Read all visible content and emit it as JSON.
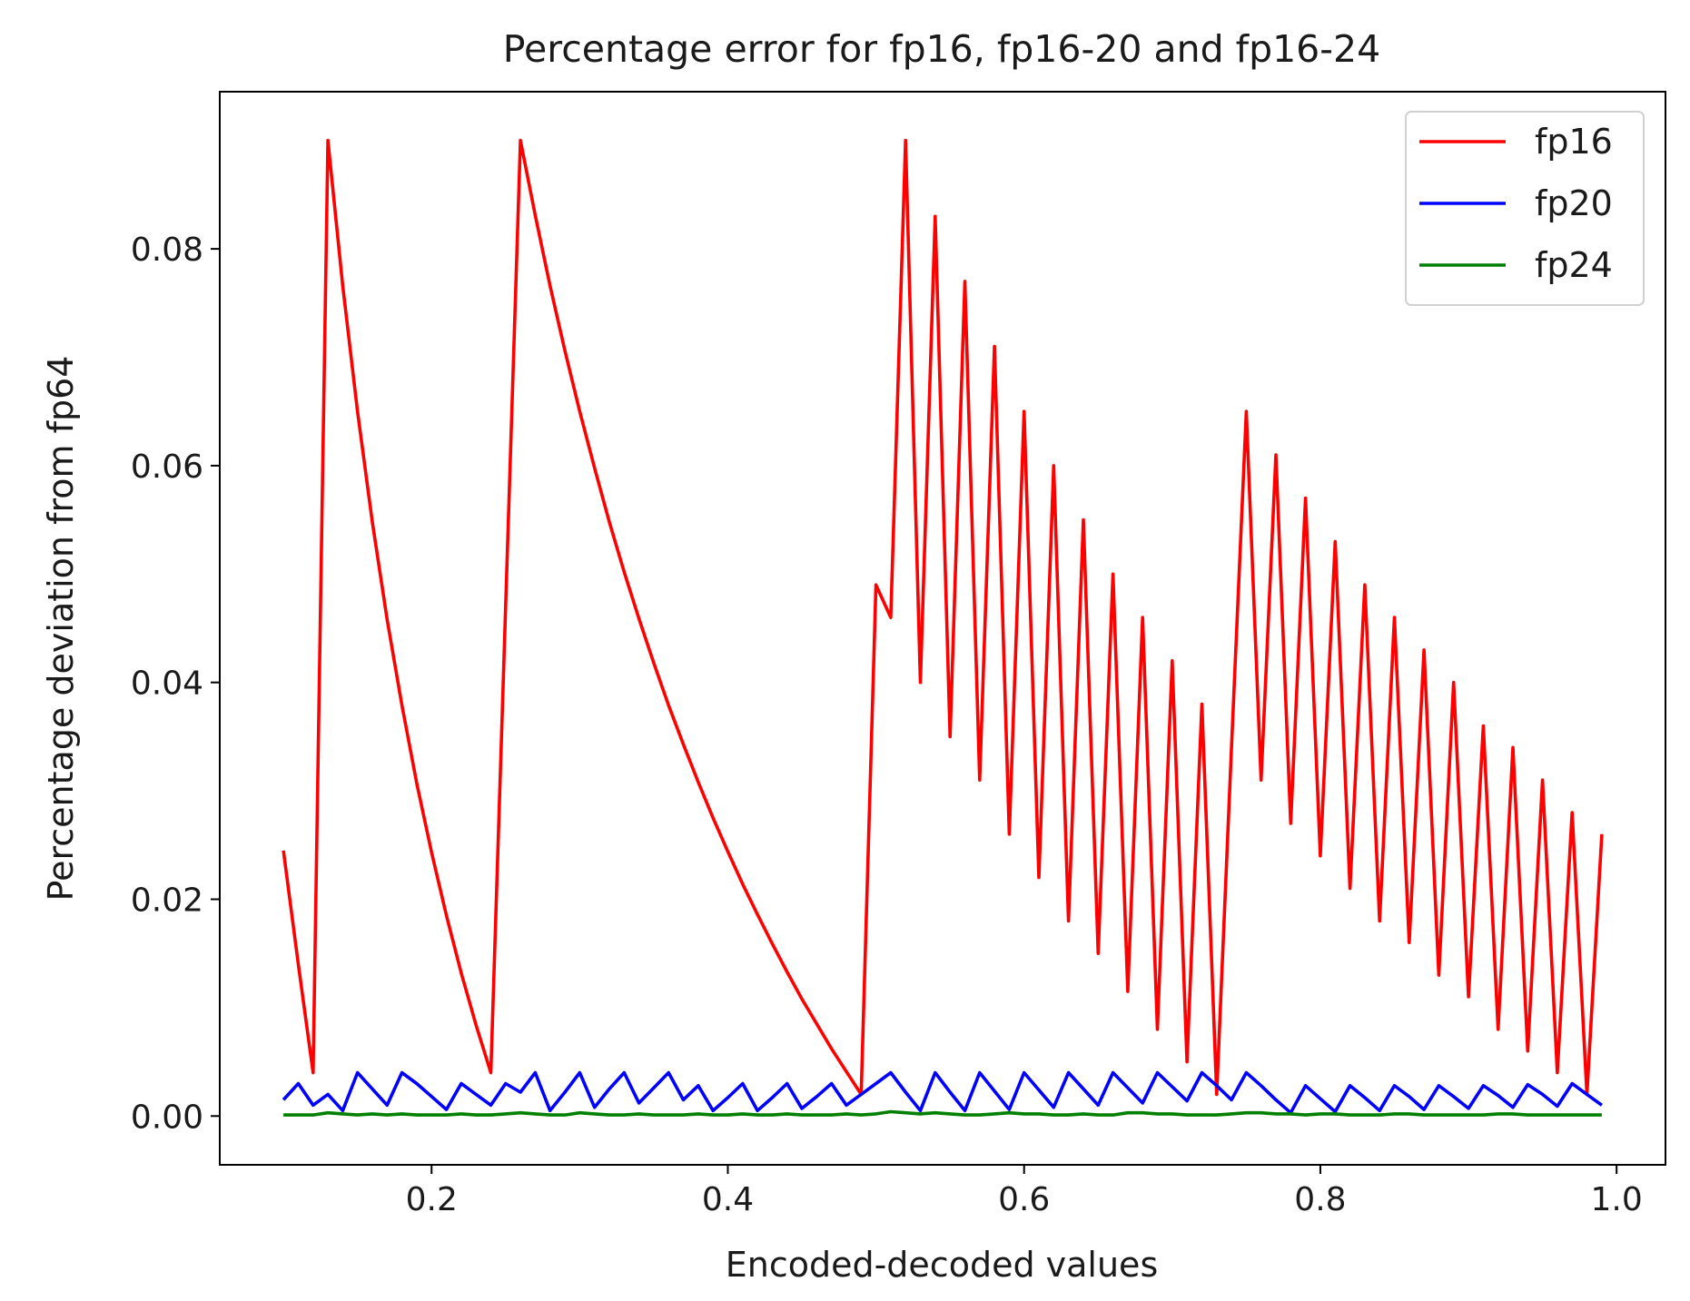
{
  "chart_data": {
    "type": "line",
    "title": "Percentage error for fp16, fp16-20 and fp16-24",
    "xlabel": "Encoded-decoded values",
    "ylabel": "Percentage deviation from fp64",
    "xlim": [
      0.057,
      1.033
    ],
    "ylim": [
      -0.0045,
      0.0945
    ],
    "xticks": [
      0.2,
      0.4,
      0.6,
      0.8,
      1.0
    ],
    "xtick_labels": [
      "0.2",
      "0.4",
      "0.6",
      "0.8",
      "1.0"
    ],
    "yticks": [
      0.0,
      0.02,
      0.04,
      0.06,
      0.08
    ],
    "ytick_labels": [
      "0.00",
      "0.02",
      "0.04",
      "0.06",
      "0.08"
    ],
    "grid": false,
    "legend_position": "top-right",
    "x_start": 0.1,
    "x_step": 0.01,
    "series": [
      {
        "name": "fp16",
        "color": "#ff0000",
        "values": [
          0.0245,
          0.014,
          0.004,
          0.09,
          0.0766,
          0.065,
          0.0548,
          0.0458,
          0.0379,
          0.0307,
          0.0243,
          0.0185,
          0.0132,
          0.0084,
          0.004,
          0.047,
          0.09,
          0.0831,
          0.0766,
          0.0706,
          0.065,
          0.0598,
          0.0548,
          0.0502,
          0.0459,
          0.0418,
          0.0379,
          0.0343,
          0.0308,
          0.0275,
          0.0244,
          0.0214,
          0.0186,
          0.0159,
          0.0133,
          0.0108,
          0.0085,
          0.0062,
          0.0041,
          0.002,
          0.049,
          0.046,
          0.09,
          0.04,
          0.083,
          0.035,
          0.077,
          0.031,
          0.071,
          0.026,
          0.065,
          0.022,
          0.06,
          0.018,
          0.055,
          0.015,
          0.05,
          0.0115,
          0.046,
          0.008,
          0.042,
          0.005,
          0.038,
          0.002,
          0.034,
          0.065,
          0.031,
          0.061,
          0.027,
          0.057,
          0.024,
          0.053,
          0.021,
          0.049,
          0.018,
          0.046,
          0.016,
          0.043,
          0.013,
          0.04,
          0.011,
          0.036,
          0.008,
          0.034,
          0.006,
          0.031,
          0.004,
          0.028,
          0.002,
          0.026
        ]
      },
      {
        "name": "fp20",
        "color": "#0000ff",
        "values": [
          0.0015,
          0.003,
          0.001,
          0.002,
          0.0005,
          0.004,
          0.0025,
          0.001,
          0.004,
          0.003,
          0.0018,
          0.0006,
          0.003,
          0.002,
          0.001,
          0.003,
          0.0022,
          0.004,
          0.0005,
          0.0022,
          0.004,
          0.0008,
          0.0025,
          0.004,
          0.0012,
          0.0026,
          0.004,
          0.0015,
          0.0028,
          0.0005,
          0.0017,
          0.003,
          0.0005,
          0.0017,
          0.003,
          0.0007,
          0.0018,
          0.003,
          0.001,
          0.002,
          0.003,
          0.004,
          0.0022,
          0.0005,
          0.004,
          0.0022,
          0.0005,
          0.004,
          0.0023,
          0.0006,
          0.004,
          0.0024,
          0.0008,
          0.004,
          0.0025,
          0.001,
          0.004,
          0.0026,
          0.0012,
          0.004,
          0.0027,
          0.0014,
          0.004,
          0.0028,
          0.0015,
          0.004,
          0.0028,
          0.0015,
          0.0003,
          0.0028,
          0.0016,
          0.0004,
          0.0028,
          0.0017,
          0.0005,
          0.0028,
          0.0018,
          0.0006,
          0.0028,
          0.0018,
          0.0007,
          0.0028,
          0.0019,
          0.0008,
          0.0029,
          0.002,
          0.0009,
          0.003,
          0.002,
          0.001
        ]
      },
      {
        "name": "fp24",
        "color": "#008000",
        "values": [
          0.0001,
          0.0001,
          0.0001,
          0.0003,
          0.0002,
          0.0001,
          0.0002,
          0.0001,
          0.0002,
          0.0001,
          0.0001,
          0.0001,
          0.0002,
          0.0001,
          0.0001,
          0.0002,
          0.0003,
          0.0002,
          0.0001,
          0.0001,
          0.0003,
          0.0002,
          0.0001,
          0.0001,
          0.0002,
          0.0001,
          0.0001,
          0.0001,
          0.0002,
          0.0001,
          0.0001,
          0.0002,
          0.0001,
          0.0001,
          0.0002,
          0.0001,
          0.0001,
          0.0001,
          0.0002,
          0.0001,
          0.0002,
          0.0004,
          0.0003,
          0.0002,
          0.0003,
          0.0002,
          0.0001,
          0.0001,
          0.0002,
          0.0003,
          0.0002,
          0.0002,
          0.0001,
          0.0001,
          0.0002,
          0.0001,
          0.0001,
          0.0003,
          0.0003,
          0.0002,
          0.0002,
          0.0001,
          0.0001,
          0.0001,
          0.0002,
          0.0003,
          0.0003,
          0.0002,
          0.0002,
          0.0001,
          0.0002,
          0.0002,
          0.0001,
          0.0001,
          0.0001,
          0.0002,
          0.0002,
          0.0001,
          0.0001,
          0.0001,
          0.0001,
          0.0001,
          0.0002,
          0.0002,
          0.0001,
          0.0001,
          0.0001,
          0.0001,
          0.0001,
          0.0001
        ]
      }
    ]
  }
}
